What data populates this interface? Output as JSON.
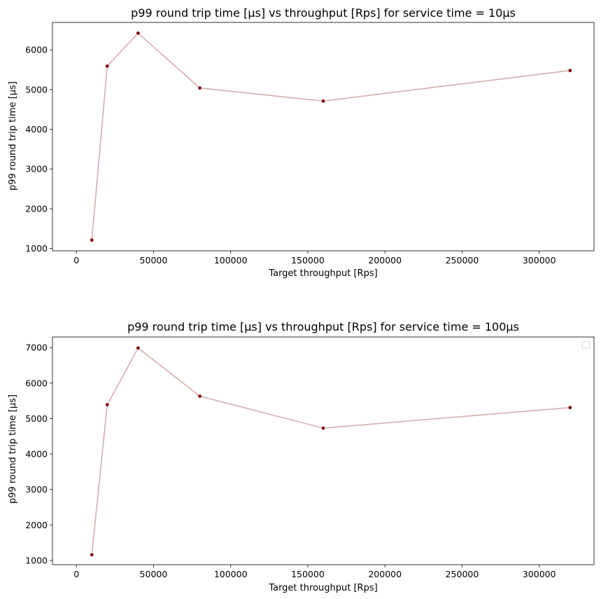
{
  "chart_data": [
    {
      "type": "line",
      "title": "p99 round trip time [µs] vs throughput [Rps] for service time = 10µs",
      "xlabel": "Target throughput [Rps]",
      "ylabel": "p99 round trip time [µs]",
      "xlim": [
        -15500,
        335500
      ],
      "ylim": [
        940,
        6690
      ],
      "xticks": [
        0,
        50000,
        100000,
        150000,
        200000,
        250000,
        300000
      ],
      "yticks": [
        1000,
        2000,
        3000,
        4000,
        5000,
        6000
      ],
      "x": [
        10000,
        20000,
        40000,
        80000,
        160000,
        320000
      ],
      "series": [
        {
          "values": [
            1210,
            5590,
            6420,
            5040,
            4710,
            5480
          ]
        }
      ],
      "line_color": "#d6aeae",
      "marker_color": "#7a0000",
      "legend": false
    },
    {
      "type": "line",
      "title": "p99 round trip time [µs] vs throughput [Rps] for service time = 100µs",
      "xlabel": "Target throughput [Rps]",
      "ylabel": "p99 round trip time [µs]",
      "xlim": [
        -15500,
        335500
      ],
      "ylim": [
        880,
        7300
      ],
      "xticks": [
        0,
        50000,
        100000,
        150000,
        200000,
        250000,
        300000
      ],
      "yticks": [
        1000,
        2000,
        3000,
        4000,
        5000,
        6000,
        7000
      ],
      "x": [
        10000,
        20000,
        40000,
        80000,
        160000,
        320000
      ],
      "series": [
        {
          "values": [
            1160,
            5390,
            6990,
            5630,
            4730,
            5310
          ]
        }
      ],
      "line_color": "#d6aeae",
      "marker_color": "#7a0000",
      "legend": true,
      "legend_position": "upper right"
    }
  ]
}
